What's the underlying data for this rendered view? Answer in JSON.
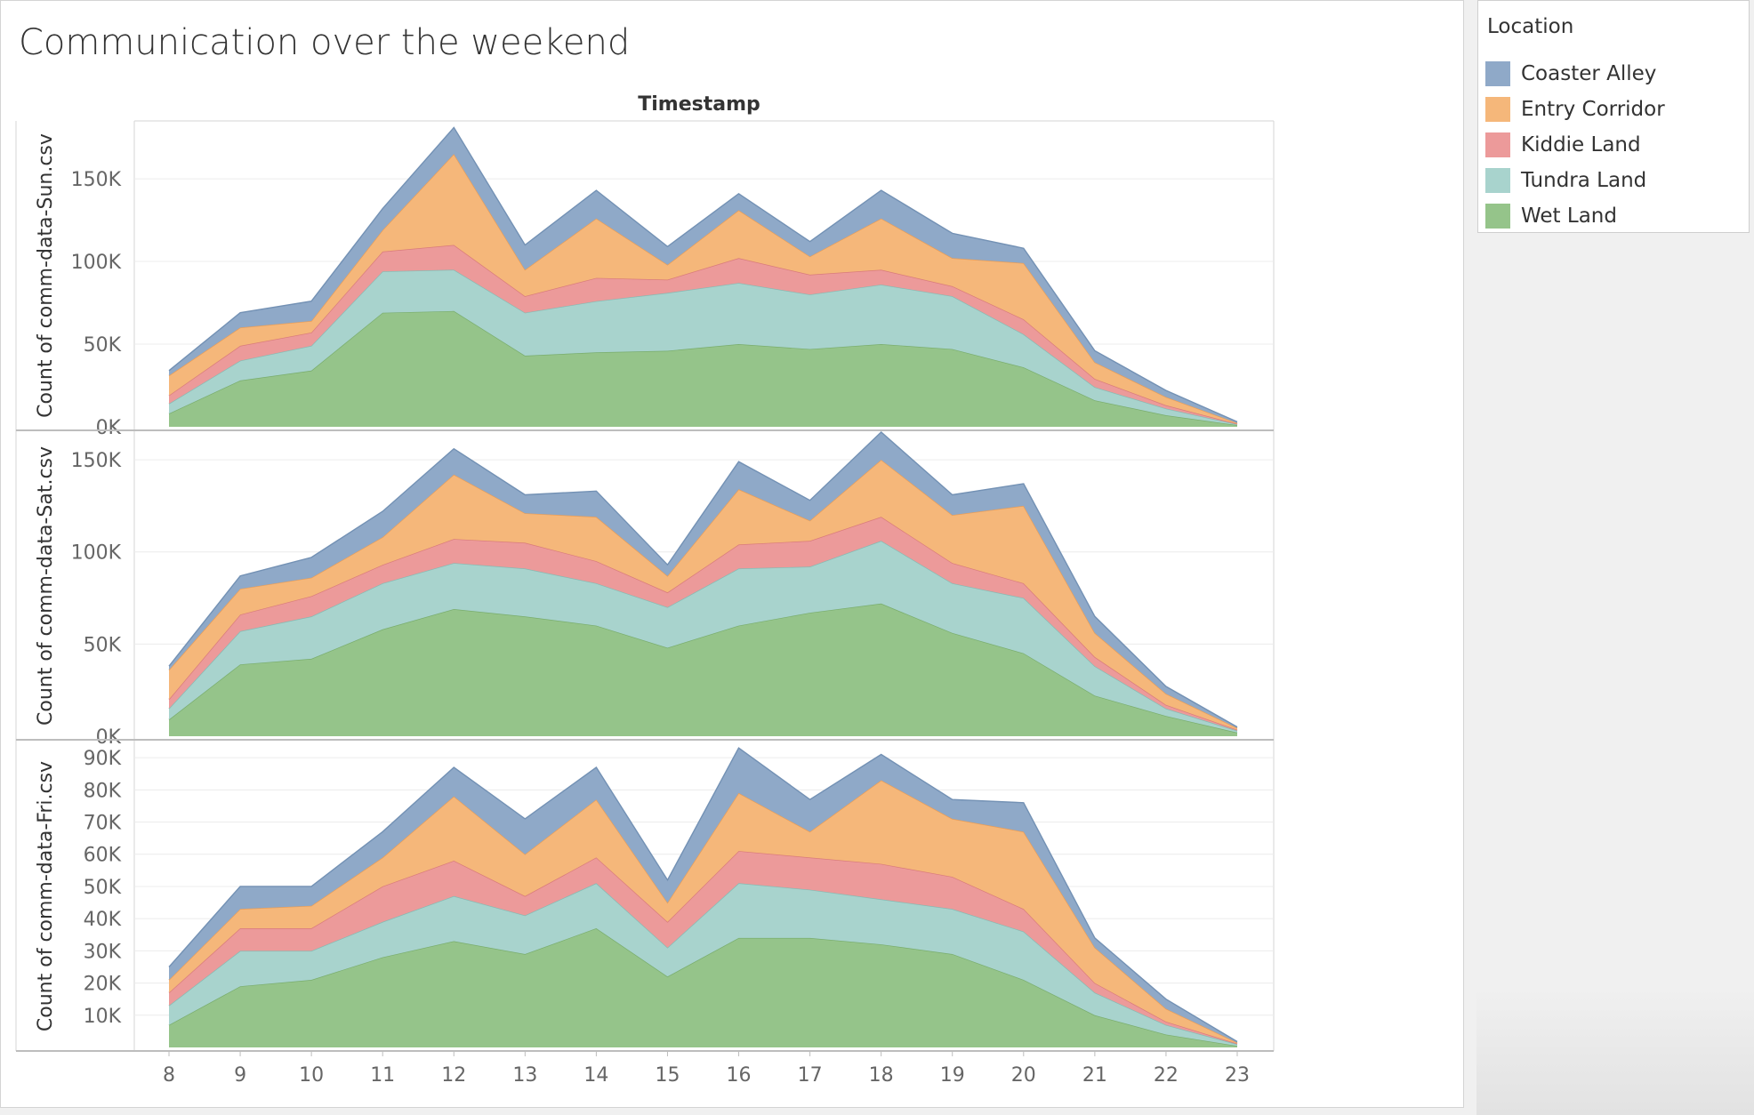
{
  "title": "Communication over the weekend",
  "legend": {
    "title": "Location",
    "items": [
      {
        "label": "Coaster Alley",
        "color": "#8fa9c8"
      },
      {
        "label": "Entry Corridor",
        "color": "#f5b77a"
      },
      {
        "label": "Kiddie Land",
        "color": "#ec9a9a"
      },
      {
        "label": "Tundra Land",
        "color": "#a8d3cd"
      },
      {
        "label": "Wet Land",
        "color": "#95c48a"
      }
    ]
  },
  "chart_data": {
    "type": "area",
    "stacked": true,
    "column_header": "Timestamp",
    "x": [
      8,
      9,
      10,
      11,
      12,
      13,
      14,
      15,
      16,
      17,
      18,
      19,
      20,
      21,
      22,
      23
    ],
    "x_tick_labels": [
      "8",
      "9",
      "10",
      "11",
      "12",
      "13",
      "14",
      "15",
      "16",
      "17",
      "18",
      "19",
      "20",
      "21",
      "22",
      "23"
    ],
    "panels": [
      {
        "ylabel": "Count of comm-data-Sun.csv",
        "ylim": [
          0,
          185000
        ],
        "y_ticks": [
          0,
          50000,
          100000,
          150000
        ],
        "y_tick_labels": [
          "0K",
          "50K",
          "100K",
          "150K"
        ],
        "series": [
          {
            "name": "Wet Land",
            "values": [
              8000,
              28000,
              34000,
              69000,
              70000,
              43000,
              45000,
              46000,
              50000,
              47000,
              50000,
              47000,
              36000,
              16000,
              7000,
              1000
            ]
          },
          {
            "name": "Tundra Land",
            "values": [
              6000,
              12000,
              15000,
              25000,
              25000,
              26000,
              31000,
              35000,
              37000,
              33000,
              36000,
              32000,
              20000,
              8000,
              4000,
              500
            ]
          },
          {
            "name": "Kiddie Land",
            "values": [
              5000,
              9000,
              8000,
              12000,
              15000,
              10000,
              14000,
              8000,
              15000,
              12000,
              9000,
              6000,
              9000,
              5000,
              2000,
              300
            ]
          },
          {
            "name": "Entry Corridor",
            "values": [
              12000,
              11000,
              7000,
              13000,
              55000,
              16000,
              36000,
              9000,
              29000,
              11000,
              31000,
              17000,
              34000,
              10000,
              5000,
              500
            ]
          },
          {
            "name": "Coaster Alley",
            "values": [
              3000,
              9000,
              12000,
              13000,
              16000,
              15000,
              17000,
              11000,
              10000,
              9000,
              17000,
              15000,
              9000,
              7000,
              4000,
              700
            ]
          }
        ]
      },
      {
        "ylabel": "Count of comm-data-Sat.csv",
        "ylim": [
          0,
          165000
        ],
        "y_ticks": [
          0,
          50000,
          100000,
          150000
        ],
        "y_tick_labels": [
          "0K",
          "50K",
          "100K",
          "150K"
        ],
        "series": [
          {
            "name": "Wet Land",
            "values": [
              9000,
              39000,
              42000,
              58000,
              69000,
              65000,
              60000,
              48000,
              60000,
              67000,
              72000,
              56000,
              45000,
              22000,
              11000,
              2000
            ]
          },
          {
            "name": "Tundra Land",
            "values": [
              6000,
              18000,
              23000,
              25000,
              25000,
              26000,
              23000,
              22000,
              31000,
              25000,
              34000,
              27000,
              30000,
              16000,
              4000,
              1000
            ]
          },
          {
            "name": "Kiddie Land",
            "values": [
              5000,
              9000,
              11000,
              10000,
              13000,
              14000,
              12000,
              8000,
              13000,
              14000,
              13000,
              11000,
              8000,
              5000,
              2000,
              500
            ]
          },
          {
            "name": "Entry Corridor",
            "values": [
              16000,
              14000,
              10000,
              15000,
              35000,
              16000,
              24000,
              9000,
              30000,
              11000,
              31000,
              26000,
              42000,
              13000,
              6000,
              1000
            ]
          },
          {
            "name": "Coaster Alley",
            "values": [
              2000,
              7000,
              11000,
              14000,
              14000,
              10000,
              14000,
              6000,
              15000,
              11000,
              15000,
              11000,
              12000,
              9000,
              4000,
              500
            ]
          }
        ]
      },
      {
        "ylabel": "Count of comm-data-Fri.csv",
        "ylim": [
          0,
          95000
        ],
        "y_ticks": [
          10000,
          20000,
          30000,
          40000,
          50000,
          60000,
          70000,
          80000,
          90000
        ],
        "y_tick_labels": [
          "10K",
          "20K",
          "30K",
          "40K",
          "50K",
          "60K",
          "70K",
          "80K",
          "90K"
        ],
        "series": [
          {
            "name": "Wet Land",
            "values": [
              7000,
              19000,
              21000,
              28000,
              33000,
              29000,
              37000,
              22000,
              34000,
              34000,
              32000,
              29000,
              21000,
              10000,
              4000,
              500
            ]
          },
          {
            "name": "Tundra Land",
            "values": [
              6000,
              11000,
              9000,
              11000,
              14000,
              12000,
              14000,
              9000,
              17000,
              15000,
              14000,
              14000,
              15000,
              7000,
              3000,
              500
            ]
          },
          {
            "name": "Kiddie Land",
            "values": [
              4000,
              7000,
              7000,
              11000,
              11000,
              6000,
              8000,
              8000,
              10000,
              10000,
              11000,
              10000,
              7000,
              3000,
              1000,
              200
            ]
          },
          {
            "name": "Entry Corridor",
            "values": [
              4000,
              6000,
              7000,
              9000,
              20000,
              13000,
              18000,
              6000,
              18000,
              8000,
              26000,
              18000,
              24000,
              11000,
              4000,
              300
            ]
          },
          {
            "name": "Coaster Alley",
            "values": [
              4000,
              7000,
              6000,
              8000,
              9000,
              11000,
              10000,
              7000,
              14000,
              10000,
              8000,
              6000,
              9000,
              3000,
              3000,
              300
            ]
          }
        ]
      }
    ]
  }
}
